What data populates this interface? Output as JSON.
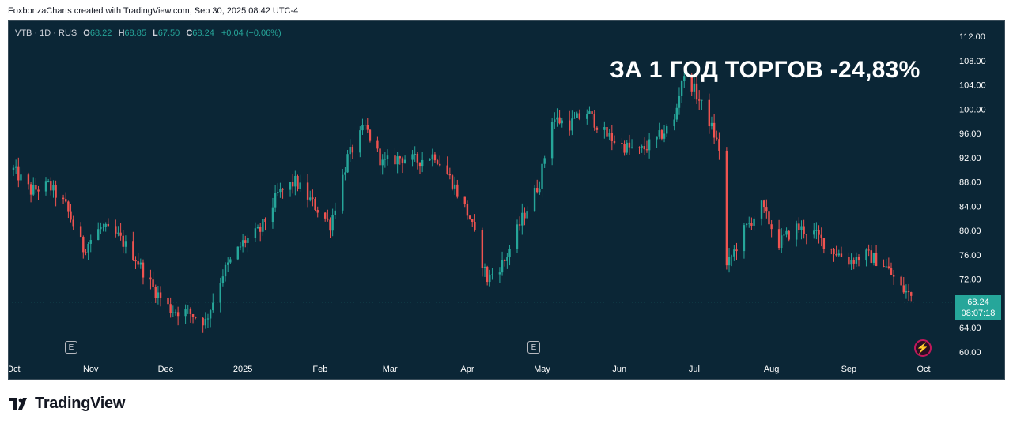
{
  "caption": "FoxbonzaCharts created with TradingView.com, Sep 30, 2025 08:42 UTC-4",
  "legend": {
    "symbol": "VTB · 1D · RUS",
    "open_label": "O",
    "open": "68.22",
    "high_label": "H",
    "high": "68.85",
    "low_label": "L",
    "low": "67.50",
    "close_label": "C",
    "close": "68.24",
    "change": "+0.04 (+0.06%)"
  },
  "overlay_title": "ЗА 1 ГОД ТОРГОВ -24,83%",
  "price_tag": {
    "price": "68.24",
    "countdown": "08:07:18"
  },
  "event_badges": [
    "E",
    "E"
  ],
  "brand": "TradingView",
  "colors": {
    "background": "#0b2636",
    "up": "#26a69a",
    "down": "#ef5350",
    "text": "#d1d4dc",
    "tag": "#26a69a"
  },
  "chart_data": {
    "type": "candlestick",
    "ylim": [
      58,
      115
    ],
    "y_ticks": [
      "112.00",
      "108.00",
      "104.00",
      "100.00",
      "96.00",
      "92.00",
      "88.00",
      "84.00",
      "80.00",
      "76.00",
      "72.00",
      "68.00",
      "64.00",
      "60.00"
    ],
    "x_ticks": [
      {
        "label": "Oct",
        "date": "2024-10-01"
      },
      {
        "label": "Nov",
        "date": "2024-11-01"
      },
      {
        "label": "Dec",
        "date": "2024-12-01"
      },
      {
        "label": "2025",
        "date": "2025-01-01"
      },
      {
        "label": "Feb",
        "date": "2025-02-01"
      },
      {
        "label": "Mar",
        "date": "2025-03-01"
      },
      {
        "label": "Apr",
        "date": "2025-04-01"
      },
      {
        "label": "May",
        "date": "2025-05-01"
      },
      {
        "label": "Jun",
        "date": "2025-06-01"
      },
      {
        "label": "Jul",
        "date": "2025-07-01"
      },
      {
        "label": "Aug",
        "date": "2025-08-01"
      },
      {
        "label": "Sep",
        "date": "2025-09-01"
      },
      {
        "label": "Oct",
        "date": "2025-10-01"
      }
    ],
    "last_price": 68.24,
    "series": [
      {
        "date": "2024-10-01",
        "close": 90.0
      },
      {
        "date": "2024-10-08",
        "close": 86.5
      },
      {
        "date": "2024-10-15",
        "close": 87.5
      },
      {
        "date": "2024-10-22",
        "close": 84.0
      },
      {
        "date": "2024-10-29",
        "close": 77.0
      },
      {
        "date": "2024-11-05",
        "close": 80.5
      },
      {
        "date": "2024-11-12",
        "close": 79.0
      },
      {
        "date": "2024-11-19",
        "close": 75.5
      },
      {
        "date": "2024-11-26",
        "close": 70.5
      },
      {
        "date": "2024-12-03",
        "close": 67.0
      },
      {
        "date": "2024-12-10",
        "close": 66.5
      },
      {
        "date": "2024-12-17",
        "close": 65.0
      },
      {
        "date": "2024-12-24",
        "close": 73.0
      },
      {
        "date": "2025-01-01",
        "close": 78.0
      },
      {
        "date": "2025-01-08",
        "close": 80.0
      },
      {
        "date": "2025-01-15",
        "close": 86.0
      },
      {
        "date": "2025-01-22",
        "close": 88.0
      },
      {
        "date": "2025-01-29",
        "close": 84.5
      },
      {
        "date": "2025-02-05",
        "close": 81.0
      },
      {
        "date": "2025-02-12",
        "close": 92.0
      },
      {
        "date": "2025-02-19",
        "close": 97.0
      },
      {
        "date": "2025-02-26",
        "close": 91.0
      },
      {
        "date": "2025-03-05",
        "close": 92.0
      },
      {
        "date": "2025-03-12",
        "close": 91.5
      },
      {
        "date": "2025-03-19",
        "close": 92.5
      },
      {
        "date": "2025-03-26",
        "close": 88.0
      },
      {
        "date": "2025-04-02",
        "close": 82.0
      },
      {
        "date": "2025-04-09",
        "close": 72.0
      },
      {
        "date": "2025-04-16",
        "close": 75.0
      },
      {
        "date": "2025-04-23",
        "close": 82.0
      },
      {
        "date": "2025-04-30",
        "close": 88.0
      },
      {
        "date": "2025-05-05",
        "close": 98.5
      },
      {
        "date": "2025-05-12",
        "close": 97.5
      },
      {
        "date": "2025-05-19",
        "close": 99.5
      },
      {
        "date": "2025-05-26",
        "close": 96.0
      },
      {
        "date": "2025-06-02",
        "close": 94.0
      },
      {
        "date": "2025-06-09",
        "close": 93.0
      },
      {
        "date": "2025-06-16",
        "close": 95.0
      },
      {
        "date": "2025-06-23",
        "close": 98.0
      },
      {
        "date": "2025-06-26",
        "close": 105.0
      },
      {
        "date": "2025-06-30",
        "close": 104.0
      },
      {
        "date": "2025-07-07",
        "close": 98.0
      },
      {
        "date": "2025-07-11",
        "close": 93.5
      },
      {
        "date": "2025-07-14",
        "close": 74.0
      },
      {
        "date": "2025-07-21",
        "close": 80.0
      },
      {
        "date": "2025-07-28",
        "close": 84.0
      },
      {
        "date": "2025-08-04",
        "close": 78.0
      },
      {
        "date": "2025-08-11",
        "close": 80.5
      },
      {
        "date": "2025-08-18",
        "close": 79.5
      },
      {
        "date": "2025-08-25",
        "close": 77.0
      },
      {
        "date": "2025-09-01",
        "close": 75.0
      },
      {
        "date": "2025-09-08",
        "close": 76.0
      },
      {
        "date": "2025-09-15",
        "close": 74.5
      },
      {
        "date": "2025-09-22",
        "close": 70.5
      },
      {
        "date": "2025-09-29",
        "close": 68.24
      }
    ]
  }
}
